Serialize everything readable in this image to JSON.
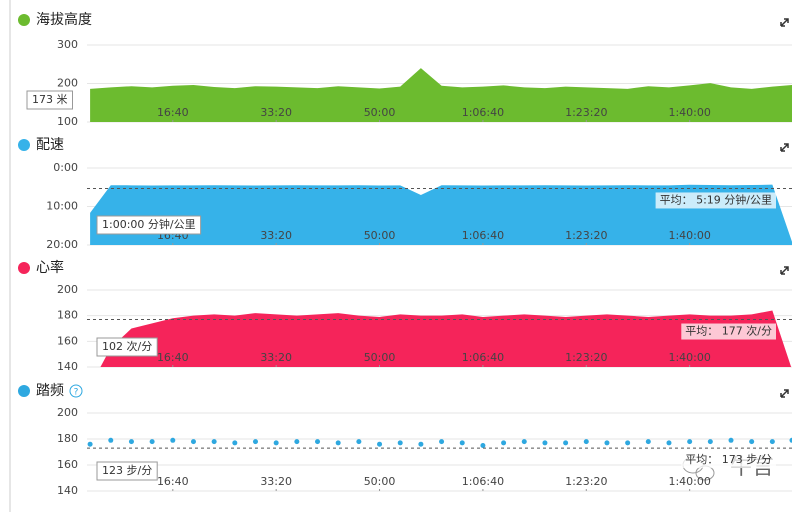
{
  "chart_data": [
    {
      "type": "area",
      "title": "海拔高度",
      "color": "#6cbb2f",
      "x": [
        200,
        400,
        600,
        800,
        1000,
        1200,
        1400,
        1600,
        1800,
        2000,
        2200,
        2400,
        2600,
        2800,
        3000,
        3200,
        3400,
        3600,
        3800,
        4000,
        4200,
        4400,
        4600,
        4800,
        5000,
        5200,
        5400,
        5600,
        5800,
        6000,
        6200,
        6400,
        6600,
        6800,
        6990
      ],
      "values": [
        186,
        190,
        193,
        190,
        194,
        196,
        191,
        188,
        193,
        192,
        190,
        188,
        193,
        190,
        187,
        192,
        240,
        194,
        190,
        192,
        195,
        190,
        188,
        192,
        190,
        188,
        186,
        193,
        190,
        195,
        201,
        190,
        186,
        192,
        196
      ],
      "xlim": [
        170,
        6990
      ],
      "xticks": [
        {
          "value": 1000,
          "label": "16:40"
        },
        {
          "value": 2000,
          "label": "33:20"
        },
        {
          "value": 3000,
          "label": "50:00"
        },
        {
          "value": 4000,
          "label": "1:06:40"
        },
        {
          "value": 5000,
          "label": "1:23:20"
        },
        {
          "value": 6000,
          "label": "1:40:00"
        }
      ],
      "ylim": [
        100,
        300
      ],
      "yticks": [
        100,
        200,
        300
      ],
      "cursor_label": "173 米"
    },
    {
      "type": "area",
      "title": "配速",
      "color": "#36b2e9",
      "x": [
        200,
        400,
        600,
        800,
        1000,
        1200,
        1400,
        1600,
        1800,
        2000,
        2200,
        2400,
        2600,
        2800,
        3000,
        3200,
        3400,
        3600,
        3800,
        4000,
        4200,
        4400,
        4600,
        4800,
        5000,
        5200,
        5400,
        5600,
        5800,
        6000,
        6200,
        6400,
        6600,
        6800,
        6990
      ],
      "values": [
        700,
        268,
        270,
        272,
        270,
        271,
        269,
        270,
        272,
        270,
        268,
        271,
        270,
        269,
        272,
        271,
        420,
        268,
        270,
        272,
        270,
        271,
        269,
        270,
        272,
        270,
        268,
        271,
        270,
        262,
        265,
        268,
        265,
        260,
        1150
      ],
      "xlim": [
        170,
        6990
      ],
      "xticks": [
        {
          "value": 1000,
          "label": "16:40"
        },
        {
          "value": 2000,
          "label": "33:20"
        },
        {
          "value": 3000,
          "label": "50:00"
        },
        {
          "value": 4000,
          "label": "1:06:40"
        },
        {
          "value": 5000,
          "label": "1:23:20"
        },
        {
          "value": 6000,
          "label": "1:40:00"
        }
      ],
      "ylim": [
        1200,
        0
      ],
      "yticks": [
        {
          "value": 0,
          "label": "0:00"
        },
        {
          "value": 600,
          "label": "10:00"
        },
        {
          "value": 1200,
          "label": "20:00"
        }
      ],
      "cursor_label": "1:00:00 分钟/公里",
      "average": {
        "value": 319,
        "label": "平均： 5:19 分钟/公里"
      }
    },
    {
      "type": "area",
      "title": "心率",
      "color": "#f5245a",
      "x": [
        200,
        400,
        600,
        800,
        1000,
        1200,
        1400,
        1600,
        1800,
        2000,
        2200,
        2400,
        2600,
        2800,
        3000,
        3200,
        3400,
        3600,
        3800,
        4000,
        4200,
        4400,
        4600,
        4800,
        5000,
        5200,
        5400,
        5600,
        5800,
        6000,
        6200,
        6400,
        6600,
        6800,
        6990
      ],
      "values": [
        125,
        155,
        170,
        174,
        178,
        180,
        181,
        180,
        182,
        181,
        180,
        181,
        182,
        180,
        179,
        181,
        180,
        180,
        181,
        179,
        180,
        181,
        180,
        179,
        180,
        181,
        180,
        179,
        180,
        181,
        180,
        180,
        181,
        184,
        138
      ],
      "xlim": [
        170,
        6990
      ],
      "xticks": [
        {
          "value": 1000,
          "label": "16:40"
        },
        {
          "value": 2000,
          "label": "33:20"
        },
        {
          "value": 3000,
          "label": "50:00"
        },
        {
          "value": 4000,
          "label": "1:06:40"
        },
        {
          "value": 5000,
          "label": "1:23:20"
        },
        {
          "value": 6000,
          "label": "1:40:00"
        }
      ],
      "ylim": [
        140,
        200
      ],
      "yticks": [
        140,
        160,
        180,
        200
      ],
      "cursor_label": "102 次/分",
      "average": {
        "value": 177,
        "label": "平均： 177 次/分"
      }
    },
    {
      "type": "scatter",
      "title": "踏频",
      "help": "?",
      "color": "#2ea8e0",
      "x": [
        200,
        400,
        600,
        800,
        1000,
        1200,
        1400,
        1600,
        1800,
        2000,
        2200,
        2400,
        2600,
        2800,
        3000,
        3200,
        3400,
        3600,
        3800,
        4000,
        4200,
        4400,
        4600,
        4800,
        5000,
        5200,
        5400,
        5600,
        5800,
        6000,
        6200,
        6400,
        6600,
        6800,
        6990
      ],
      "values": [
        176,
        179,
        178,
        178,
        179,
        178,
        178,
        177,
        178,
        177,
        178,
        178,
        177,
        178,
        176,
        177,
        176,
        178,
        177,
        175,
        177,
        178,
        177,
        177,
        178,
        177,
        177,
        178,
        177,
        178,
        178,
        179,
        178,
        178,
        179
      ],
      "xlim": [
        170,
        6990
      ],
      "xticks": [
        {
          "value": 1000,
          "label": "16:40"
        },
        {
          "value": 2000,
          "label": "33:20"
        },
        {
          "value": 3000,
          "label": "50:00"
        },
        {
          "value": 4000,
          "label": "1:06:40"
        },
        {
          "value": 5000,
          "label": "1:23:20"
        },
        {
          "value": 6000,
          "label": "1:40:00"
        }
      ],
      "ylim": [
        140,
        200
      ],
      "yticks": [
        140,
        160,
        180,
        200
      ],
      "cursor_label": "123 步/分",
      "average": {
        "value": 173,
        "label": "平均： 173 步/分"
      }
    }
  ],
  "watermark": "牛言"
}
